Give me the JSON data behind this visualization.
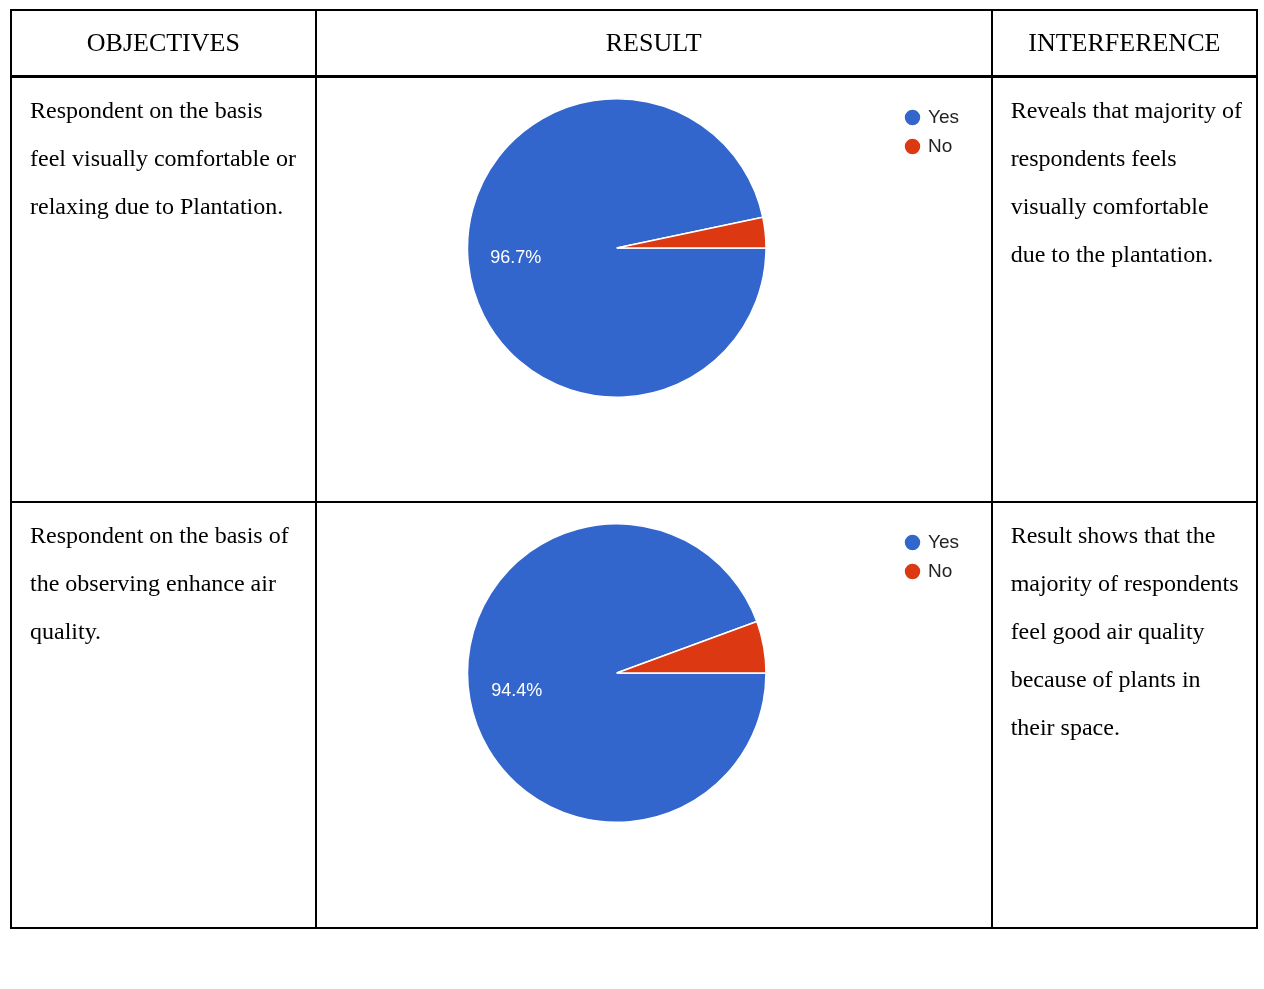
{
  "chart_data": [
    {
      "type": "other",
      "annotations": [
        "OBJECTIVES",
        "RESULT",
        "INTERFERENCE"
      ]
    },
    {
      "type": "pie",
      "categories": [
        "Yes",
        "No"
      ],
      "values": [
        96.7,
        3.3
      ],
      "colors": [
        "#3366cc",
        "#dc3912"
      ],
      "value_labels": [
        "96.7%",
        null
      ],
      "legend": "top right",
      "annotations": [
        "Respondent on the basis feel visually comfortable or relaxing due to Plantation.",
        "Reveals that majority of respondents feels visually comfortable due to the plantation."
      ]
    },
    {
      "type": "pie",
      "categories": [
        "Yes",
        "No"
      ],
      "values": [
        94.4,
        5.6
      ],
      "colors": [
        "#3366cc",
        "#dc3912"
      ],
      "value_labels": [
        "94.4%",
        null
      ],
      "legend": "top right",
      "annotations": [
        "Respondent on the basis of the observing enhance air quality.",
        "Result shows that the majority of respondents feel good air quality because of plants in their space."
      ]
    }
  ]
}
